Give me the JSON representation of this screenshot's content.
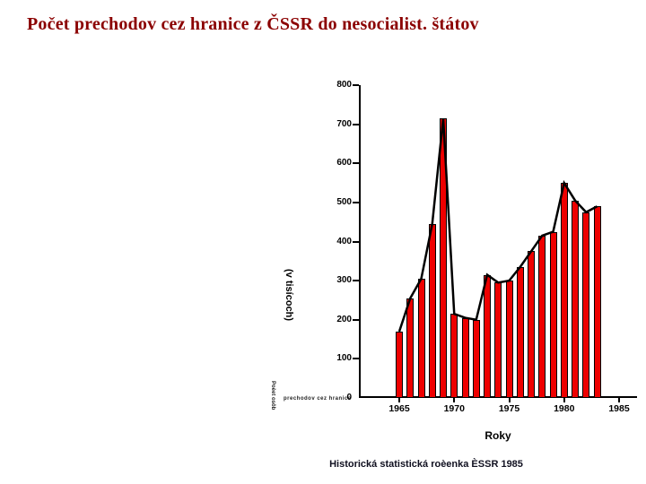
{
  "title": "Počet prechodov cez hranice z ČSSR do nesocialist. štátov",
  "source": "Historická statistická roèenka ÈSSR 1985",
  "fine_print": {
    "vertical": "Poèet osôb",
    "horizontal": "prechodov cez hranice"
  },
  "chart_data": {
    "type": "bar",
    "overlay_line": true,
    "title": "Počet prechodov cez hranice z ČSSR do nesocialist. štátov",
    "categories": [
      "1965",
      "1966",
      "1967",
      "1968",
      "1969",
      "1970",
      "1971",
      "1972",
      "1973",
      "1974",
      "1975",
      "1976",
      "1977",
      "1978",
      "1979",
      "1980",
      "1981",
      "1982",
      "1983"
    ],
    "values": [
      170,
      255,
      305,
      445,
      715,
      215,
      205,
      200,
      315,
      295,
      300,
      335,
      375,
      415,
      425,
      550,
      505,
      475,
      490
    ],
    "xlabel": "Roky",
    "ylabel": "(v tisícoch)",
    "ylim": [
      0,
      800
    ],
    "ytick_step": 100,
    "xticks_shown": [
      "1965",
      "1970",
      "1975",
      "1980",
      "1985"
    ],
    "grid": false,
    "legend": false,
    "colors": {
      "bar_fill": "#ee0000",
      "bar_border": "#000000",
      "line": "#000000",
      "axis": "#000000",
      "title_text": "#8b0000"
    }
  }
}
